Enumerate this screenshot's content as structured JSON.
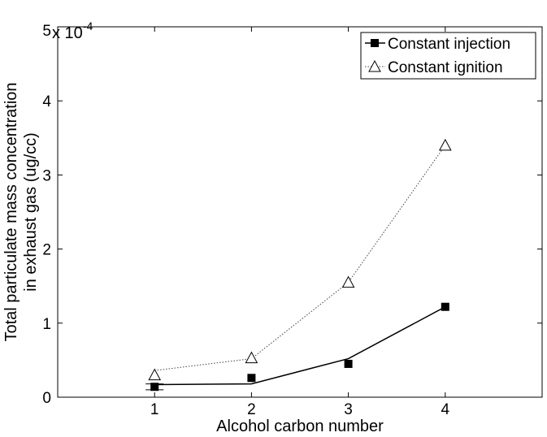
{
  "chart_data": {
    "type": "line",
    "xlabel": "Alcohol carbon number",
    "ylabel": "Total particulate mass concentration",
    "ylabel_line2": "in exhaust gas (ug/cc)",
    "y_multiplier": "x 10",
    "y_multiplier_exponent": "-4",
    "xlim": [
      0,
      5
    ],
    "ylim": [
      0,
      5
    ],
    "x_ticks": [
      "1",
      "2",
      "3",
      "4"
    ],
    "y_ticks": [
      "0",
      "1",
      "2",
      "3",
      "4",
      "5"
    ],
    "legend_position": "top-right",
    "grid": false,
    "series": [
      {
        "name": "Constant injection",
        "marker": "filled-square",
        "points": [
          {
            "x": 1,
            "y": 0.14,
            "err": 0.04
          },
          {
            "x": 2,
            "y": 0.26
          },
          {
            "x": 3,
            "y": 0.45
          },
          {
            "x": 4,
            "y": 1.22
          }
        ],
        "fit": [
          [
            1,
            0.17
          ],
          [
            2,
            0.18
          ],
          [
            3,
            0.52
          ],
          [
            4,
            1.22
          ]
        ]
      },
      {
        "name": "Constant ignition",
        "marker": "open-triangle",
        "points": [
          {
            "x": 1,
            "y": 0.3
          },
          {
            "x": 2,
            "y": 0.53
          },
          {
            "x": 3,
            "y": 1.55
          },
          {
            "x": 4,
            "y": 3.4
          }
        ],
        "fit": [
          [
            1,
            0.36
          ],
          [
            2,
            0.52
          ],
          [
            3,
            1.55
          ],
          [
            4,
            3.4
          ]
        ]
      }
    ]
  }
}
